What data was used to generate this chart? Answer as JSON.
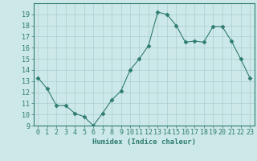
{
  "x": [
    0,
    1,
    2,
    3,
    4,
    5,
    6,
    7,
    8,
    9,
    10,
    11,
    12,
    13,
    14,
    15,
    16,
    17,
    18,
    19,
    20,
    21,
    22,
    23
  ],
  "y": [
    13.3,
    12.3,
    10.8,
    10.8,
    10.1,
    9.8,
    9.0,
    10.1,
    11.3,
    12.1,
    14.0,
    15.0,
    16.2,
    19.2,
    19.0,
    18.0,
    16.5,
    16.6,
    16.5,
    17.9,
    17.9,
    16.6,
    15.0,
    13.3
  ],
  "line_color": "#2e7d6e",
  "marker": "D",
  "marker_size": 2.5,
  "bg_color": "#cde8e8",
  "grid_color": "#aacfcf",
  "xlabel": "Humidex (Indice chaleur)",
  "ylim": [
    9,
    20
  ],
  "xlim": [
    -0.5,
    23.5
  ],
  "yticks": [
    9,
    10,
    11,
    12,
    13,
    14,
    15,
    16,
    17,
    18,
    19
  ],
  "xticks": [
    0,
    1,
    2,
    3,
    4,
    5,
    6,
    7,
    8,
    9,
    10,
    11,
    12,
    13,
    14,
    15,
    16,
    17,
    18,
    19,
    20,
    21,
    22,
    23
  ],
  "axis_color": "#2e7d6e",
  "label_fontsize": 6.5,
  "tick_fontsize": 6.0
}
